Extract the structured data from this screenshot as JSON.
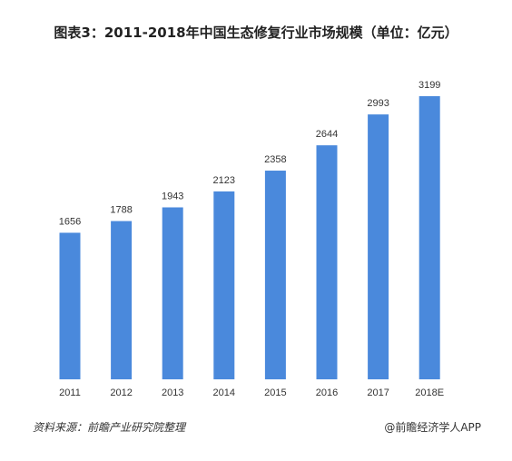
{
  "chart_data": {
    "type": "bar",
    "title": "图表3：2011-2018年中国生态修复行业市场规模（单位：亿元）",
    "categories": [
      "2011",
      "2012",
      "2013",
      "2014",
      "2015",
      "2016",
      "2017",
      "2018E"
    ],
    "values": [
      1656,
      1788,
      1943,
      2123,
      2358,
      2644,
      2993,
      3199
    ],
    "color": "#4a89dc",
    "source": "资料来源：前瞻产业研究院整理",
    "credit": "@前瞻经济学人APP"
  }
}
